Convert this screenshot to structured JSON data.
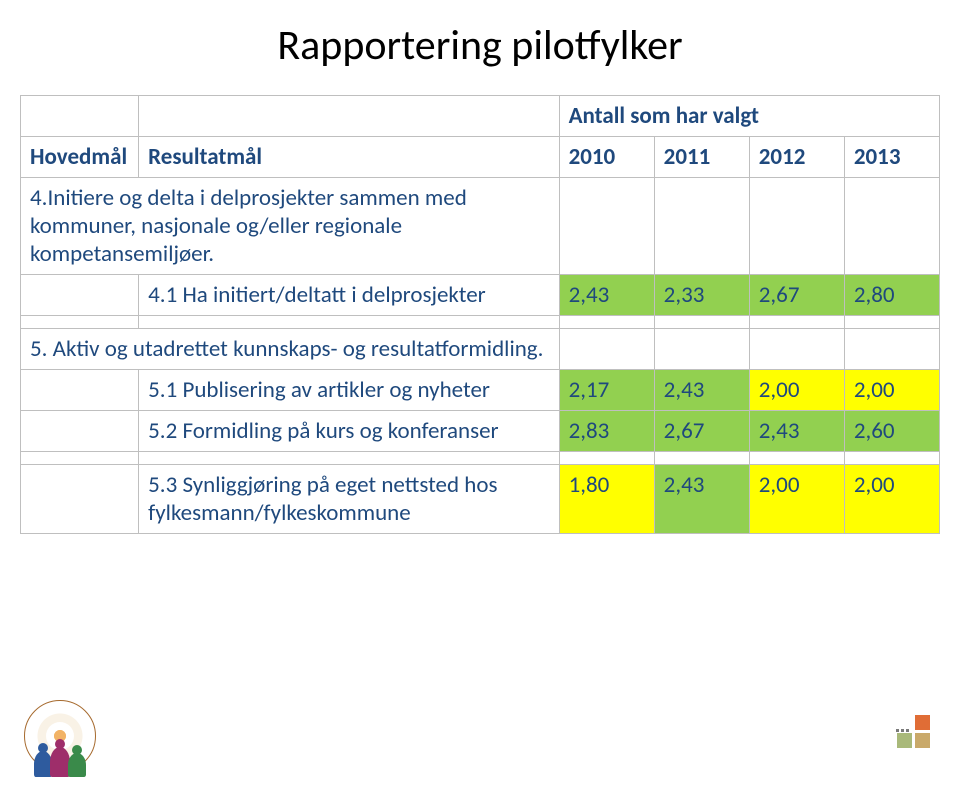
{
  "title": "Rapportering pilotfylker",
  "header": {
    "col0": "Hovedmål",
    "col1": "Resultatmål",
    "group": "Antall som har valgt",
    "years": [
      "2010",
      "2011",
      "2012",
      "2013"
    ]
  },
  "sections": {
    "s4": {
      "label": "4.Initiere og delta i delprosjekter sammen med kommuner, nasjonale og/eller regionale kompetansemiljøer."
    },
    "r41": {
      "label": "4.1 Ha initiert/deltatt i delprosjekter",
      "values": [
        "2,43",
        "2,33",
        "2,67",
        "2,80"
      ],
      "colors": [
        "#92d050",
        "#92d050",
        "#92d050",
        "#92d050"
      ]
    },
    "s5": {
      "label": "5. Aktiv og utadrettet kunnskaps- og resultatformidling."
    },
    "r51": {
      "label": "5.1 Publisering av artikler og nyheter",
      "values": [
        "2,17",
        "2,43",
        "2,00",
        "2,00"
      ],
      "colors": [
        "#92d050",
        "#92d050",
        "#ffff00",
        "#ffff00"
      ]
    },
    "r52": {
      "label": "5.2 Formidling på kurs og konferanser",
      "values": [
        "2,83",
        "2,67",
        "2,43",
        "2,60"
      ],
      "colors": [
        "#92d050",
        "#92d050",
        "#92d050",
        "#92d050"
      ]
    },
    "r53": {
      "label": "5.3 Synliggjøring på eget nettsted hos fylkesmann/fylkeskommune",
      "values": [
        "1,80",
        "2,43",
        "2,00",
        "2,00"
      ],
      "colors": [
        "#ffff00",
        "#92d050",
        "#ffff00",
        "#ffff00"
      ]
    }
  },
  "styling": {
    "title_color": "#000000",
    "title_fontsize": 42,
    "table_font_color": "#1f497d",
    "table_fontsize": 23,
    "border_color": "#bfbfbf",
    "green": "#92d050",
    "yellow": "#ffff00",
    "background": "#ffffff"
  }
}
